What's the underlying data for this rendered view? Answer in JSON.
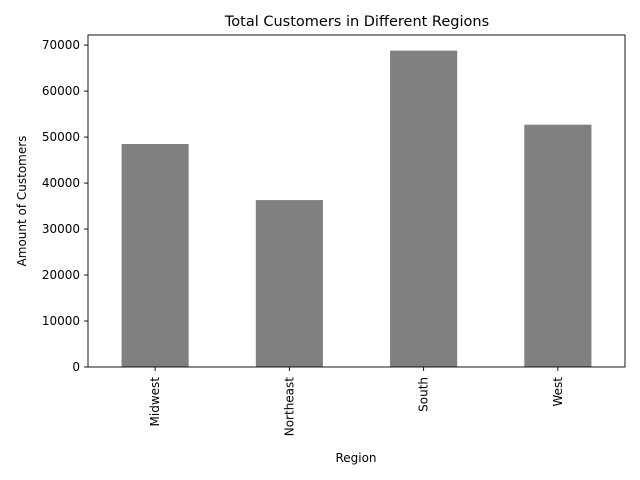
{
  "chart_data": {
    "type": "bar",
    "title": "Total Customers in Different Regions",
    "xlabel": "Region",
    "ylabel": "Amount of Customers",
    "categories": [
      "Midwest",
      "Northeast",
      "South",
      "West"
    ],
    "values": [
      48500,
      36300,
      68800,
      52700
    ],
    "ylim": [
      0,
      72200
    ],
    "yticks": [
      0,
      10000,
      20000,
      30000,
      40000,
      50000,
      60000,
      70000
    ],
    "grid": false,
    "legend": null,
    "colors": {
      "bar": "#808080",
      "axis": "#000000",
      "background": "#ffffff"
    }
  }
}
